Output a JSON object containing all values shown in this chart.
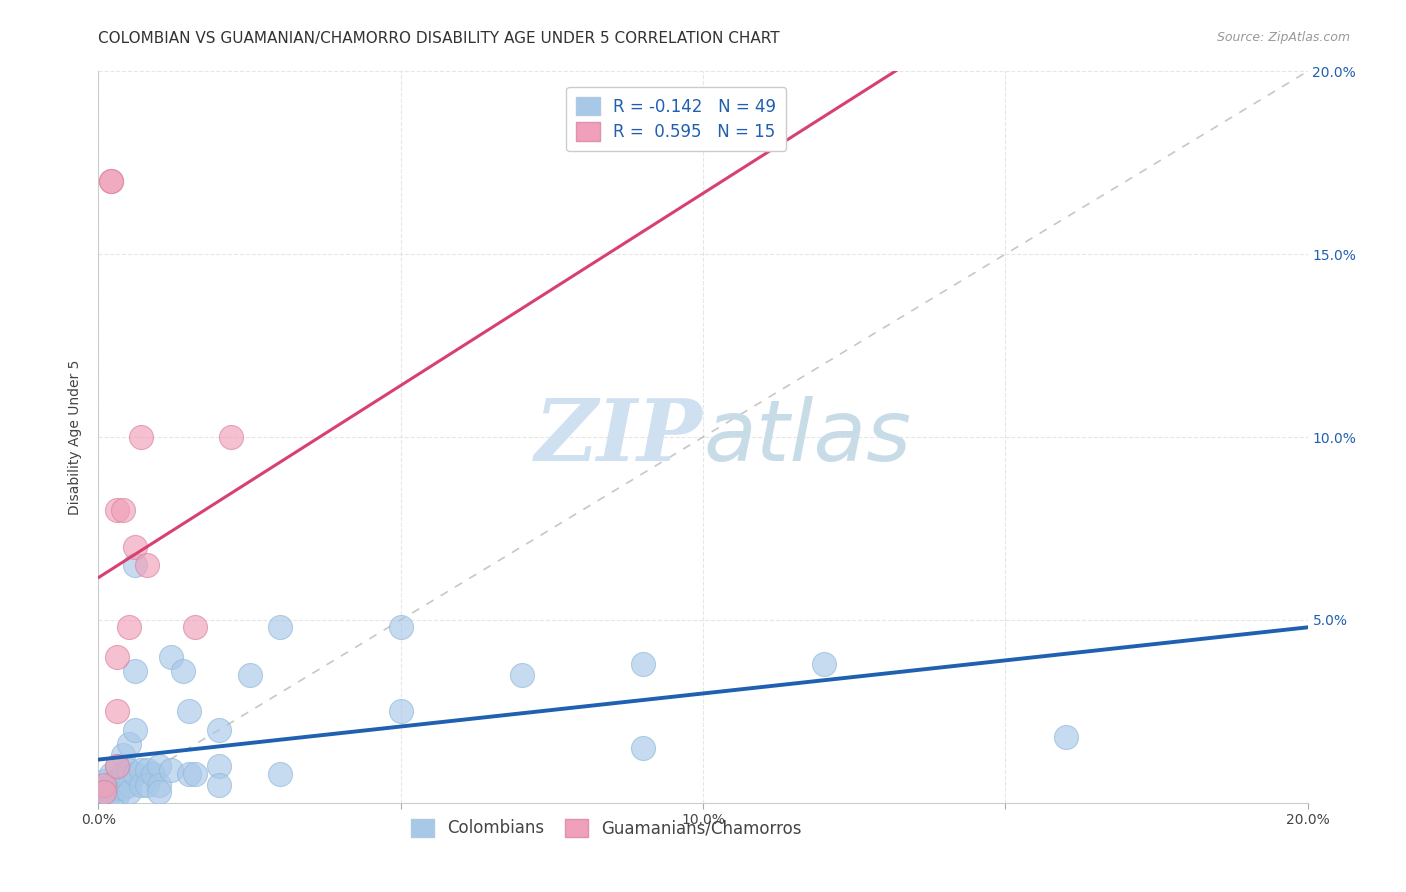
{
  "title": "COLOMBIAN VS GUAMANIAN/CHAMORRO DISABILITY AGE UNDER 5 CORRELATION CHART",
  "source": "Source: ZipAtlas.com",
  "ylabel": "Disability Age Under 5",
  "xlim": [
    0,
    0.2
  ],
  "ylim": [
    0,
    0.2
  ],
  "xticks": [
    0.0,
    0.05,
    0.1,
    0.15,
    0.2
  ],
  "yticks": [
    0.0,
    0.05,
    0.1,
    0.15,
    0.2
  ],
  "xticklabels": [
    "0.0%",
    "",
    "10.0%",
    "",
    "20.0%"
  ],
  "yticklabels": [
    "",
    "",
    "",
    "",
    ""
  ],
  "right_yticklabels": [
    "",
    "5.0%",
    "10.0%",
    "15.0%",
    "20.0%"
  ],
  "colombian_color": "#a8c8e8",
  "guamanian_color": "#f0a0b8",
  "colombian_line_color": "#2060b0",
  "guamanian_line_color": "#d84070",
  "background_color": "#ffffff",
  "grid_color": "#e0e0e0",
  "legend_color": "#2060b0",
  "R_colombian": -0.142,
  "N_colombian": 49,
  "R_guamanian": 0.595,
  "N_guamanian": 15,
  "colombian_points": [
    [
      0.001,
      0.006
    ],
    [
      0.001,
      0.004
    ],
    [
      0.001,
      0.002
    ],
    [
      0.002,
      0.008
    ],
    [
      0.002,
      0.005
    ],
    [
      0.002,
      0.003
    ],
    [
      0.002,
      0.001
    ],
    [
      0.003,
      0.01
    ],
    [
      0.003,
      0.006
    ],
    [
      0.003,
      0.004
    ],
    [
      0.003,
      0.002
    ],
    [
      0.004,
      0.013
    ],
    [
      0.004,
      0.008
    ],
    [
      0.004,
      0.004
    ],
    [
      0.005,
      0.016
    ],
    [
      0.005,
      0.009
    ],
    [
      0.005,
      0.005
    ],
    [
      0.005,
      0.003
    ],
    [
      0.006,
      0.065
    ],
    [
      0.006,
      0.036
    ],
    [
      0.006,
      0.02
    ],
    [
      0.006,
      0.008
    ],
    [
      0.007,
      0.009
    ],
    [
      0.007,
      0.005
    ],
    [
      0.008,
      0.009
    ],
    [
      0.008,
      0.005
    ],
    [
      0.009,
      0.008
    ],
    [
      0.01,
      0.01
    ],
    [
      0.01,
      0.005
    ],
    [
      0.01,
      0.003
    ],
    [
      0.012,
      0.04
    ],
    [
      0.012,
      0.009
    ],
    [
      0.014,
      0.036
    ],
    [
      0.015,
      0.025
    ],
    [
      0.015,
      0.008
    ],
    [
      0.016,
      0.008
    ],
    [
      0.02,
      0.02
    ],
    [
      0.02,
      0.01
    ],
    [
      0.02,
      0.005
    ],
    [
      0.025,
      0.035
    ],
    [
      0.03,
      0.048
    ],
    [
      0.03,
      0.008
    ],
    [
      0.05,
      0.048
    ],
    [
      0.05,
      0.025
    ],
    [
      0.07,
      0.035
    ],
    [
      0.09,
      0.038
    ],
    [
      0.09,
      0.015
    ],
    [
      0.12,
      0.038
    ],
    [
      0.16,
      0.018
    ]
  ],
  "guamanian_points": [
    [
      0.001,
      0.005
    ],
    [
      0.001,
      0.003
    ],
    [
      0.002,
      0.17
    ],
    [
      0.002,
      0.17
    ],
    [
      0.003,
      0.08
    ],
    [
      0.003,
      0.04
    ],
    [
      0.003,
      0.025
    ],
    [
      0.003,
      0.01
    ],
    [
      0.004,
      0.08
    ],
    [
      0.005,
      0.048
    ],
    [
      0.006,
      0.07
    ],
    [
      0.007,
      0.1
    ],
    [
      0.008,
      0.065
    ],
    [
      0.016,
      0.048
    ],
    [
      0.022,
      0.1
    ]
  ],
  "watermark_zip": "ZIP",
  "watermark_atlas": "atlas",
  "watermark_color": "#cfe0f0",
  "title_fontsize": 11,
  "axis_label_fontsize": 10,
  "tick_fontsize": 10,
  "legend_fontsize": 12
}
